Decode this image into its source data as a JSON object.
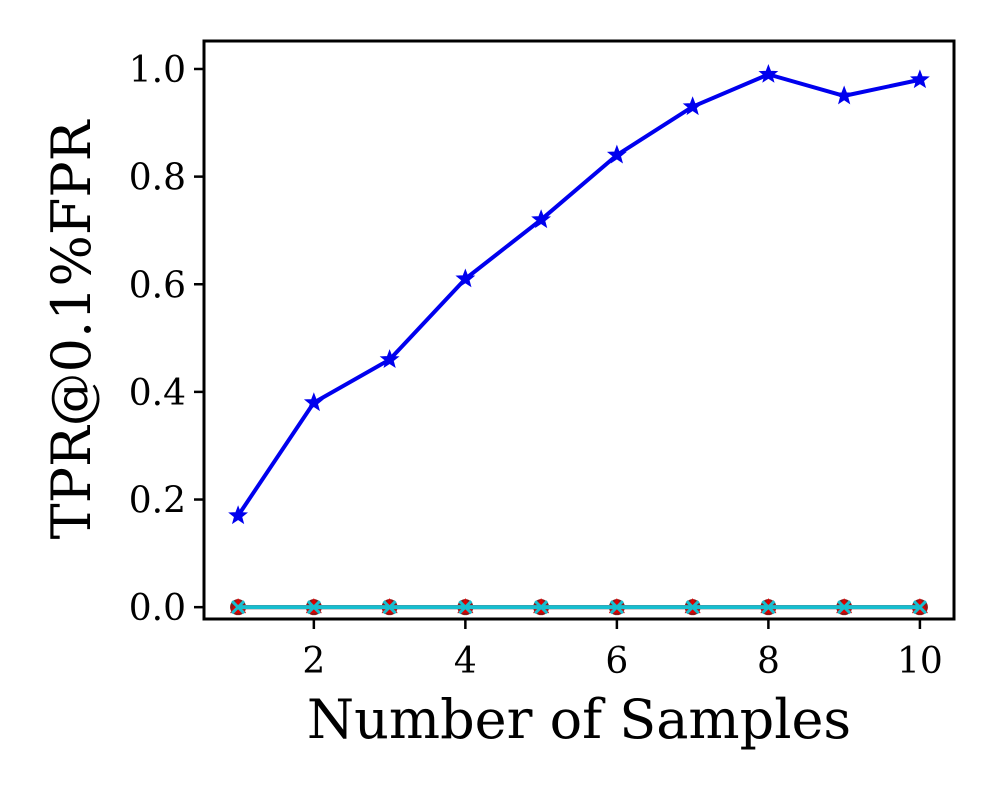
{
  "chart_data": {
    "type": "line",
    "title": "",
    "xlabel": "Number of Samples",
    "ylabel": "TPR@0.1%FPR",
    "xlim": [
      0.55,
      10.45
    ],
    "ylim": [
      -0.022,
      1.052
    ],
    "x_ticks": [
      2,
      4,
      6,
      8,
      10
    ],
    "y_ticks": [
      0.0,
      0.2,
      0.4,
      0.6,
      0.8,
      1.0
    ],
    "x_tick_labels": [
      "2",
      "4",
      "6",
      "8",
      "10"
    ],
    "y_tick_labels": [
      "0.0",
      "0.2",
      "0.4",
      "0.6",
      "0.8",
      "1.0"
    ],
    "grid": false,
    "legend": "none",
    "x": [
      1,
      2,
      3,
      4,
      5,
      6,
      7,
      8,
      9,
      10
    ],
    "series": [
      {
        "values": [
          0.17,
          0.38,
          0.46,
          0.61,
          0.72,
          0.84,
          0.93,
          0.99,
          0.95,
          0.98
        ],
        "color": "#0000ee",
        "marker": "star"
      },
      {
        "values": [
          0,
          0,
          0,
          0,
          0,
          0,
          0,
          0,
          0,
          0
        ],
        "color": "#8b1a1a",
        "marker": "circle"
      },
      {
        "values": [
          0,
          0,
          0,
          0,
          0,
          0,
          0,
          0,
          0,
          0
        ],
        "color": "#dd0000",
        "marker": "triangle"
      },
      {
        "values": [
          0,
          0,
          0,
          0,
          0,
          0,
          0,
          0,
          0,
          0
        ],
        "color": "#17becf",
        "marker": "x"
      }
    ]
  }
}
